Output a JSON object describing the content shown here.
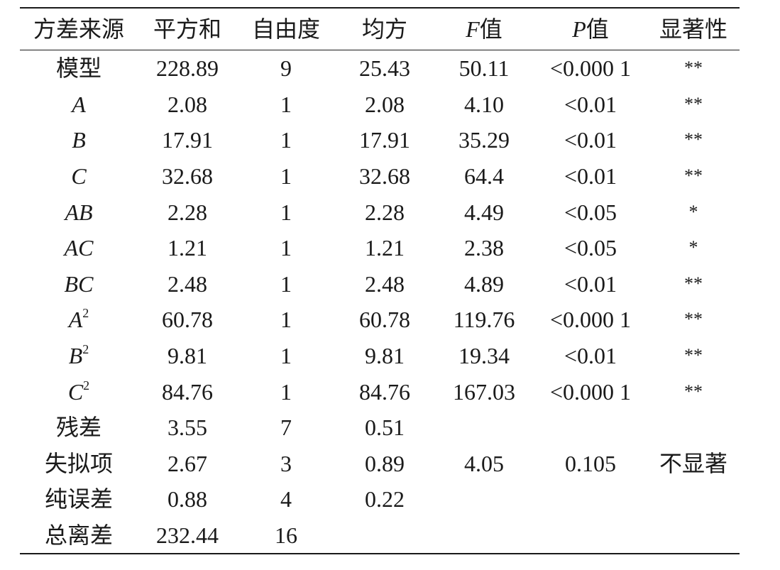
{
  "table": {
    "headers": [
      {
        "text": "方差来源"
      },
      {
        "text": "平方和"
      },
      {
        "text": "自由度"
      },
      {
        "text": "均方"
      },
      {
        "italic": "F",
        "text": "值"
      },
      {
        "italic": "P",
        "text": "值"
      },
      {
        "text": "显著性"
      }
    ],
    "rows": [
      {
        "source": "模型",
        "source_italic": false,
        "source_sup": "",
        "ss": "228.89",
        "df": "9",
        "ms": "25.43",
        "f": "50.11",
        "p": "<0.000 1",
        "sig": "**"
      },
      {
        "source": "A",
        "source_italic": true,
        "source_sup": "",
        "ss": "2.08",
        "df": "1",
        "ms": "2.08",
        "f": "4.10",
        "p": "<0.01",
        "sig": "**"
      },
      {
        "source": "B",
        "source_italic": true,
        "source_sup": "",
        "ss": "17.91",
        "df": "1",
        "ms": "17.91",
        "f": "35.29",
        "p": "<0.01",
        "sig": "**"
      },
      {
        "source": "C",
        "source_italic": true,
        "source_sup": "",
        "ss": "32.68",
        "df": "1",
        "ms": "32.68",
        "f": "64.4",
        "p": "<0.01",
        "sig": "**"
      },
      {
        "source": "AB",
        "source_italic": true,
        "source_sup": "",
        "ss": "2.28",
        "df": "1",
        "ms": "2.28",
        "f": "4.49",
        "p": "<0.05",
        "sig": "*"
      },
      {
        "source": "AC",
        "source_italic": true,
        "source_sup": "",
        "ss": "1.21",
        "df": "1",
        "ms": "1.21",
        "f": "2.38",
        "p": "<0.05",
        "sig": "*"
      },
      {
        "source": "BC",
        "source_italic": true,
        "source_sup": "",
        "ss": "2.48",
        "df": "1",
        "ms": "2.48",
        "f": "4.89",
        "p": "<0.01",
        "sig": "**"
      },
      {
        "source": "A",
        "source_italic": true,
        "source_sup": "2",
        "ss": "60.78",
        "df": "1",
        "ms": "60.78",
        "f": "119.76",
        "p": "<0.000 1",
        "sig": "**"
      },
      {
        "source": "B",
        "source_italic": true,
        "source_sup": "2",
        "ss": "9.81",
        "df": "1",
        "ms": "9.81",
        "f": "19.34",
        "p": "<0.01",
        "sig": "**"
      },
      {
        "source": "C",
        "source_italic": true,
        "source_sup": "2",
        "ss": "84.76",
        "df": "1",
        "ms": "84.76",
        "f": "167.03",
        "p": "<0.000 1",
        "sig": "**"
      },
      {
        "source": "残差",
        "source_italic": false,
        "source_sup": "",
        "ss": "3.55",
        "df": "7",
        "ms": "0.51",
        "f": "",
        "p": "",
        "sig": ""
      },
      {
        "source": "失拟项",
        "source_italic": false,
        "source_sup": "",
        "ss": "2.67",
        "df": "3",
        "ms": "0.89",
        "f": "4.05",
        "p": "0.105",
        "sig": "不显著"
      },
      {
        "source": "纯误差",
        "source_italic": false,
        "source_sup": "",
        "ss": "0.88",
        "df": "4",
        "ms": "0.22",
        "f": "",
        "p": "",
        "sig": ""
      },
      {
        "source": "总离差",
        "source_italic": false,
        "source_sup": "",
        "ss": "232.44",
        "df": "16",
        "ms": "",
        "f": "",
        "p": "",
        "sig": ""
      }
    ]
  }
}
